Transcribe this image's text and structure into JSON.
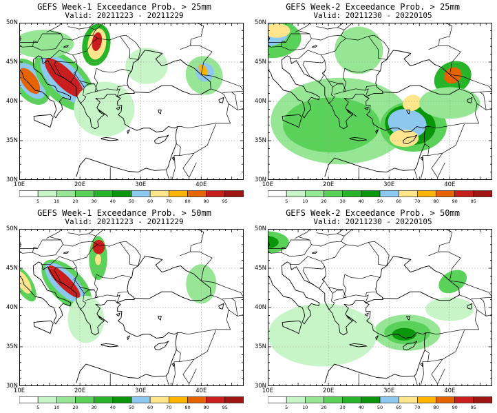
{
  "colorbar": {
    "ticks": [
      "5",
      "10",
      "20",
      "30",
      "40",
      "50",
      "60",
      "70",
      "80",
      "90",
      "95"
    ],
    "colors": [
      "#ffffff",
      "#c8f5c8",
      "#96e696",
      "#5ad25a",
      "#28b428",
      "#0a960a",
      "#8cc8f0",
      "#ffe68c",
      "#ffb400",
      "#e66400",
      "#c81e1e",
      "#a01414"
    ]
  },
  "lat_labels": [
    "50N",
    "45N",
    "40N",
    "35N",
    "30N"
  ],
  "lon_labels": [
    "10E",
    "20E",
    "30E",
    "40E"
  ],
  "panels": [
    {
      "title": "GEFS Week-1 Exceedance Prob. > 25mm",
      "valid": "Valid: 20211223 - 20211229",
      "blobs": [
        {
          "lon": 11.8,
          "lat": 42.5,
          "rx": 2.6,
          "ry": 3.3,
          "rot": -35,
          "lvl": 3
        },
        {
          "lon": 11.9,
          "lat": 42.6,
          "rx": 1.9,
          "ry": 2.6,
          "rot": -35,
          "lvl": 6
        },
        {
          "lon": 11.7,
          "lat": 42.6,
          "rx": 1.2,
          "ry": 1.9,
          "rot": -35,
          "lvl": 9
        },
        {
          "lon": 17.5,
          "lat": 42.6,
          "rx": 3.4,
          "ry": 4.8,
          "rot": -45,
          "lvl": 3
        },
        {
          "lon": 17.5,
          "lat": 42.8,
          "rx": 2.4,
          "ry": 4.0,
          "rot": -45,
          "lvl": 6
        },
        {
          "lon": 17.4,
          "lat": 43.0,
          "rx": 1.5,
          "ry": 3.3,
          "rot": -45,
          "lvl": 10
        },
        {
          "lon": 22.7,
          "lat": 47.2,
          "rx": 2.3,
          "ry": 2.7,
          "rot": 10,
          "lvl": 4
        },
        {
          "lon": 22.8,
          "lat": 47.3,
          "rx": 1.5,
          "ry": 2.0,
          "rot": 10,
          "lvl": 7
        },
        {
          "lon": 22.8,
          "lat": 47.6,
          "rx": 0.8,
          "ry": 1.2,
          "rot": 10,
          "lvl": 10
        },
        {
          "lon": 14.0,
          "lat": 47.3,
          "rx": 5.0,
          "ry": 1.8,
          "rot": 0,
          "lvl": 2
        },
        {
          "lon": 24.0,
          "lat": 39.0,
          "rx": 5.0,
          "ry": 3.5,
          "rot": 0,
          "lvl": 1
        },
        {
          "lon": 31.0,
          "lat": 44.5,
          "rx": 3.5,
          "ry": 2.3,
          "rot": 0,
          "lvl": 1
        },
        {
          "lon": 40.5,
          "lat": 43.3,
          "rx": 3.0,
          "ry": 2.5,
          "rot": -30,
          "lvl": 2
        },
        {
          "lon": 40.6,
          "lat": 43.7,
          "rx": 1.5,
          "ry": 1.2,
          "rot": -30,
          "lvl": 6
        },
        {
          "lon": 40.3,
          "lat": 44.0,
          "rx": 0.6,
          "ry": 0.8,
          "rot": -30,
          "lvl": 8
        }
      ]
    },
    {
      "title": "GEFS Week-2 Exceedance Prob. > 25mm",
      "valid": "Valid: 20211230 - 20220105",
      "blobs": [
        {
          "lon": 22.0,
          "lat": 37.5,
          "rx": 11.5,
          "ry": 5.5,
          "rot": 0,
          "lvl": 2
        },
        {
          "lon": 20.5,
          "lat": 37.0,
          "rx": 8.0,
          "ry": 3.5,
          "rot": 0,
          "lvl": 3
        },
        {
          "lon": 34.0,
          "lat": 36.8,
          "rx": 5.5,
          "ry": 3.2,
          "rot": 0,
          "lvl": 3
        },
        {
          "lon": 33.5,
          "lat": 37.0,
          "rx": 4.2,
          "ry": 2.5,
          "rot": 10,
          "lvl": 5
        },
        {
          "lon": 33.0,
          "lat": 37.2,
          "rx": 3.2,
          "ry": 1.8,
          "rot": 10,
          "lvl": 6
        },
        {
          "lon": 32.5,
          "lat": 35.3,
          "rx": 2.4,
          "ry": 1.1,
          "rot": 0,
          "lvl": 7
        },
        {
          "lon": 33.8,
          "lat": 39.8,
          "rx": 1.6,
          "ry": 1.0,
          "rot": -20,
          "lvl": 7
        },
        {
          "lon": 10.5,
          "lat": 48.0,
          "rx": 5.0,
          "ry": 2.5,
          "rot": 0,
          "lvl": 3
        },
        {
          "lon": 9.5,
          "lat": 48.6,
          "rx": 3.8,
          "ry": 1.6,
          "rot": 0,
          "lvl": 6
        },
        {
          "lon": 11.5,
          "lat": 49.0,
          "rx": 2.2,
          "ry": 0.9,
          "rot": 0,
          "lvl": 7
        },
        {
          "lon": 40.5,
          "lat": 43.0,
          "rx": 3.2,
          "ry": 2.0,
          "rot": -30,
          "lvl": 4
        },
        {
          "lon": 40.5,
          "lat": 43.3,
          "rx": 1.5,
          "ry": 1.0,
          "rot": -30,
          "lvl": 9
        },
        {
          "lon": 40.0,
          "lat": 39.8,
          "rx": 5.0,
          "ry": 2.0,
          "rot": 0,
          "lvl": 2
        },
        {
          "lon": 25.0,
          "lat": 46.5,
          "rx": 4.0,
          "ry": 3.0,
          "rot": 0,
          "lvl": 2
        }
      ]
    },
    {
      "title": "GEFS Week-1 Exceedance Prob. > 50mm",
      "valid": "Valid: 20211223 - 20211229",
      "blobs": [
        {
          "lon": 17.8,
          "lat": 42.9,
          "rx": 2.7,
          "ry": 4.0,
          "rot": -45,
          "lvl": 3
        },
        {
          "lon": 17.6,
          "lat": 43.1,
          "rx": 1.8,
          "ry": 3.4,
          "rot": -45,
          "lvl": 6
        },
        {
          "lon": 17.4,
          "lat": 43.3,
          "rx": 1.0,
          "ry": 2.8,
          "rot": -45,
          "lvl": 10
        },
        {
          "lon": 10.8,
          "lat": 43.0,
          "rx": 1.4,
          "ry": 2.5,
          "rot": -30,
          "lvl": 3
        },
        {
          "lon": 10.7,
          "lat": 43.2,
          "rx": 0.9,
          "ry": 1.6,
          "rot": -30,
          "lvl": 7
        },
        {
          "lon": 23.0,
          "lat": 46.3,
          "rx": 1.5,
          "ry": 2.8,
          "rot": 0,
          "lvl": 3
        },
        {
          "lon": 23.1,
          "lat": 47.7,
          "rx": 1.0,
          "ry": 0.9,
          "rot": 0,
          "lvl": 10
        },
        {
          "lon": 23.0,
          "lat": 46.1,
          "rx": 0.5,
          "ry": 0.7,
          "rot": 0,
          "lvl": 7
        },
        {
          "lon": 21.0,
          "lat": 38.5,
          "rx": 3.0,
          "ry": 3.0,
          "rot": 0,
          "lvl": 1
        },
        {
          "lon": 40.0,
          "lat": 43.0,
          "rx": 2.5,
          "ry": 2.5,
          "rot": 0,
          "lvl": 2
        }
      ]
    },
    {
      "title": "GEFS Week-2 Exceedance Prob. > 50mm",
      "valid": "Valid: 20211230 - 20220105",
      "blobs": [
        {
          "lon": 33.0,
          "lat": 36.8,
          "rx": 5.5,
          "ry": 2.3,
          "rot": 0,
          "lvl": 2
        },
        {
          "lon": 33.0,
          "lat": 36.8,
          "rx": 3.8,
          "ry": 1.5,
          "rot": 0,
          "lvl": 3
        },
        {
          "lon": 32.5,
          "lat": 36.6,
          "rx": 2.0,
          "ry": 0.8,
          "rot": 0,
          "lvl": 5
        },
        {
          "lon": 19.0,
          "lat": 36.5,
          "rx": 9.0,
          "ry": 4.0,
          "rot": 0,
          "lvl": 1
        },
        {
          "lon": 10.0,
          "lat": 48.3,
          "rx": 3.5,
          "ry": 1.4,
          "rot": 0,
          "lvl": 3
        },
        {
          "lon": 9.8,
          "lat": 48.3,
          "rx": 2.0,
          "ry": 0.8,
          "rot": 0,
          "lvl": 5
        },
        {
          "lon": 40.5,
          "lat": 43.3,
          "rx": 2.5,
          "ry": 1.3,
          "rot": -30,
          "lvl": 3
        },
        {
          "lon": 40.0,
          "lat": 39.8,
          "rx": 4.0,
          "ry": 1.5,
          "rot": 0,
          "lvl": 1
        }
      ]
    }
  ]
}
